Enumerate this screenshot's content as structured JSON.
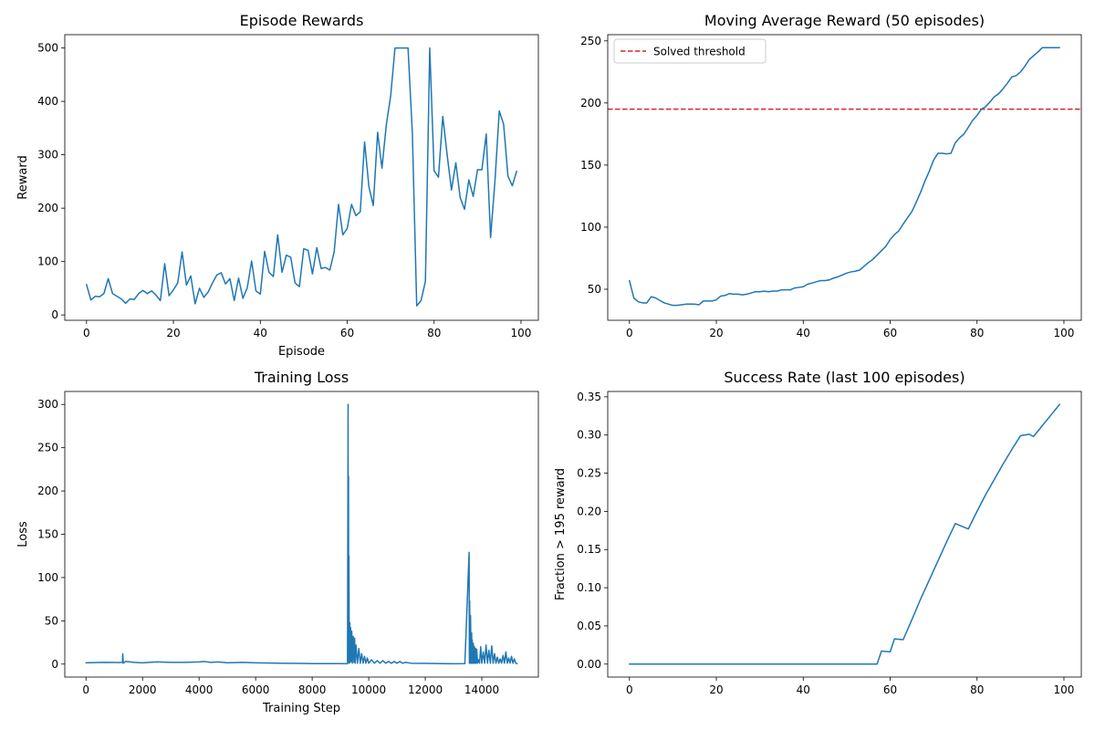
{
  "chart_data": [
    {
      "type": "line",
      "title": "Episode Rewards",
      "xlabel": "Episode",
      "ylabel": "Reward",
      "xlim": [
        -5,
        104
      ],
      "ylim": [
        -10,
        525
      ],
      "xticks": [
        0,
        20,
        40,
        60,
        80,
        100
      ],
      "yticks": [
        0,
        100,
        200,
        300,
        400,
        500
      ],
      "grid": false,
      "series": [
        {
          "color": "#1f77b4",
          "x": [
            0,
            1,
            2,
            3,
            4,
            5,
            6,
            7,
            8,
            9,
            10,
            11,
            12,
            13,
            14,
            15,
            16,
            17,
            18,
            19,
            20,
            21,
            22,
            23,
            24,
            25,
            26,
            27,
            28,
            29,
            30,
            31,
            32,
            33,
            34,
            35,
            36,
            37,
            38,
            39,
            40,
            41,
            42,
            43,
            44,
            45,
            46,
            47,
            48,
            49,
            50,
            51,
            52,
            53,
            54,
            55,
            56,
            57,
            58,
            59,
            60,
            61,
            62,
            63,
            64,
            65,
            66,
            67,
            68,
            69,
            70,
            71,
            72,
            73,
            74,
            75,
            76,
            77,
            78,
            79,
            80,
            81,
            82,
            83,
            84,
            85,
            86,
            87,
            88,
            89,
            90,
            91,
            92,
            93,
            94,
            95,
            96,
            97,
            98,
            99
          ],
          "y": [
            57,
            28,
            35,
            34,
            40,
            68,
            40,
            35,
            30,
            22,
            30,
            29,
            40,
            46,
            40,
            45,
            37,
            27,
            96,
            36,
            47,
            60,
            118,
            56,
            73,
            21,
            50,
            33,
            43,
            60,
            75,
            79,
            58,
            68,
            27,
            69,
            31,
            51,
            101,
            45,
            39,
            119,
            80,
            72,
            150,
            80,
            112,
            108,
            60,
            53,
            124,
            121,
            77,
            126,
            87,
            89,
            84,
            118,
            207,
            150,
            162,
            207,
            186,
            193,
            324,
            240,
            205,
            342,
            275,
            356,
            410,
            500,
            500,
            500,
            500,
            340,
            17,
            27,
            63,
            500,
            270,
            258,
            372,
            300,
            234,
            285,
            220,
            198,
            253,
            222,
            272,
            272,
            339,
            145,
            250,
            382,
            357,
            260,
            242,
            269
          ]
        }
      ]
    },
    {
      "type": "line",
      "title": "Moving Average Reward (50 episodes)",
      "xlabel": "",
      "ylabel": "",
      "xlim": [
        -5,
        104
      ],
      "ylim": [
        25,
        255
      ],
      "xticks": [
        0,
        20,
        40,
        60,
        80,
        100
      ],
      "yticks": [
        50,
        100,
        150,
        200,
        250
      ],
      "grid": false,
      "legend": {
        "position": "top-left",
        "entries": [
          {
            "label": "Solved threshold",
            "color": "#d62728",
            "style": "dashed"
          }
        ]
      },
      "hlines": [
        {
          "y": 195,
          "color": "#d62728",
          "style": "dashed"
        }
      ],
      "series": [
        {
          "color": "#1f77b4",
          "x": [
            0,
            1,
            2,
            3,
            4,
            5,
            6,
            7,
            8,
            9,
            10,
            11,
            12,
            13,
            14,
            15,
            16,
            17,
            18,
            19,
            20,
            21,
            22,
            23,
            24,
            25,
            26,
            27,
            28,
            29,
            30,
            31,
            32,
            33,
            34,
            35,
            36,
            37,
            38,
            39,
            40,
            41,
            42,
            43,
            44,
            45,
            46,
            47,
            48,
            49,
            50,
            51,
            52,
            53,
            54,
            55,
            56,
            57,
            58,
            59,
            60,
            61,
            62,
            63,
            64,
            65,
            66,
            67,
            68,
            69,
            70,
            71,
            72,
            73,
            74,
            75,
            76,
            77,
            78,
            79,
            80,
            81,
            82,
            83,
            84,
            85,
            86,
            87,
            88,
            89,
            90,
            91,
            92,
            93,
            94,
            95,
            96,
            97,
            98,
            99
          ],
          "y": [
            57,
            43,
            40,
            39,
            39,
            44,
            43,
            41,
            39,
            38,
            37,
            37,
            37.5,
            38,
            38,
            38,
            37.5,
            40.5,
            40.5,
            40.5,
            41.5,
            44.5,
            45,
            46.5,
            46,
            46,
            45.5,
            46,
            47,
            48,
            48,
            48.5,
            48,
            48.5,
            48.5,
            49.5,
            49.5,
            49.5,
            51,
            51.5,
            52,
            54,
            55,
            56,
            57,
            57,
            57.5,
            59,
            60,
            61.5,
            63,
            64,
            64.5,
            65.5,
            68.5,
            71.5,
            74,
            77.5,
            81,
            84.5,
            90,
            94,
            97,
            102.5,
            107.5,
            112.5,
            120,
            128,
            137,
            145,
            154,
            159.5,
            159.5,
            159,
            159.5,
            168,
            172,
            175,
            180.5,
            186,
            190,
            195,
            197,
            201,
            205,
            207.5,
            211.5,
            216,
            221,
            222,
            225,
            229.5,
            235,
            238,
            241,
            244.5,
            244.5,
            244.5,
            244.5,
            244.5
          ]
        }
      ]
    },
    {
      "type": "line",
      "title": "Training Loss",
      "xlabel": "Training Step",
      "ylabel": "Loss",
      "xlim": [
        -750,
        16000
      ],
      "ylim": [
        -15,
        315
      ],
      "xticks": [
        0,
        2000,
        4000,
        6000,
        8000,
        10000,
        12000,
        14000
      ],
      "yticks": [
        0,
        50,
        100,
        150,
        200,
        250,
        300
      ],
      "grid": false,
      "series": [
        {
          "color": "#1f77b4",
          "x": [
            0,
            600,
            1200,
            1290,
            1300,
            1320,
            1400,
            1700,
            2000,
            2500,
            3000,
            3500,
            4000,
            4200,
            4400,
            4700,
            5000,
            5500,
            6000,
            6500,
            7000,
            7500,
            8000,
            8500,
            9000,
            9250,
            9270,
            9275,
            9285,
            9290,
            9300,
            9310,
            9330,
            9350,
            9360,
            9380,
            9400,
            9420,
            9450,
            9480,
            9500,
            9520,
            9550,
            9600,
            9650,
            9700,
            9750,
            9800,
            9850,
            9900,
            9950,
            10000,
            10100,
            10200,
            10300,
            10400,
            10500,
            10600,
            10700,
            10800,
            10900,
            11000,
            11100,
            11200,
            11300,
            11500,
            12000,
            12500,
            13000,
            13400,
            13550,
            13560,
            13570,
            13580,
            13600,
            13620,
            13640,
            13650,
            13660,
            13680,
            13700,
            13720,
            13740,
            13760,
            13780,
            13800,
            13820,
            13850,
            13880,
            13920,
            13960,
            14000,
            14050,
            14100,
            14150,
            14200,
            14250,
            14300,
            14350,
            14400,
            14450,
            14500,
            14550,
            14600,
            14650,
            14700,
            14750,
            14800,
            14850,
            14900,
            14950,
            15000,
            15050,
            15100,
            15150,
            15200,
            15250
          ],
          "y": [
            1.5,
            2,
            1.8,
            2,
            12,
            1,
            3,
            2,
            1.5,
            2.5,
            2,
            2,
            2.5,
            3,
            2,
            2.5,
            1.5,
            2,
            1.5,
            1.2,
            1,
            0.8,
            0.6,
            0.5,
            0.5,
            0.4,
            300,
            5,
            217,
            2,
            125,
            1,
            48,
            2,
            42,
            3,
            38,
            1,
            32,
            2,
            30,
            1,
            22,
            1,
            18,
            1,
            12,
            1,
            9,
            1,
            7,
            1,
            5,
            1,
            4,
            1,
            4,
            1,
            3,
            1,
            3,
            1,
            3,
            1,
            2,
            1,
            0.8,
            0.5,
            0.4,
            0.6,
            129,
            1,
            73,
            1,
            56,
            1,
            36,
            1,
            28,
            1,
            24,
            1,
            20,
            1,
            18,
            1,
            17,
            1,
            5,
            1,
            20,
            1,
            14,
            1,
            22,
            1,
            16,
            1,
            21,
            1,
            12,
            1,
            8,
            1,
            6,
            1,
            10,
            1,
            14,
            1,
            7,
            1,
            9,
            1,
            6,
            1,
            0.5
          ]
        }
      ]
    },
    {
      "type": "line",
      "title": "Success Rate (last 100 episodes)",
      "xlabel": "",
      "ylabel": "Fraction > 195 reward",
      "xlim": [
        -5,
        104
      ],
      "ylim": [
        -0.017,
        0.357
      ],
      "xticks": [
        0,
        20,
        40,
        60,
        80,
        100
      ],
      "yticks": [
        0.0,
        0.05,
        0.1,
        0.15,
        0.2,
        0.25,
        0.3,
        0.35
      ],
      "ytick_labels": [
        "0.00",
        "0.05",
        "0.10",
        "0.15",
        "0.20",
        "0.25",
        "0.30",
        "0.35"
      ],
      "grid": false,
      "series": [
        {
          "color": "#1f77b4",
          "x": [
            0,
            57,
            58,
            60,
            61,
            63,
            65,
            67,
            69,
            71,
            73,
            75,
            78,
            80,
            82,
            84,
            86,
            88,
            90,
            92,
            93,
            95,
            97,
            99
          ],
          "y": [
            0,
            0,
            0.017,
            0.016,
            0.033,
            0.032,
            0.058,
            0.085,
            0.11,
            0.135,
            0.16,
            0.184,
            0.177,
            0.2,
            0.222,
            0.242,
            0.262,
            0.281,
            0.299,
            0.301,
            0.298,
            0.312,
            0.326,
            0.34
          ]
        }
      ]
    }
  ]
}
